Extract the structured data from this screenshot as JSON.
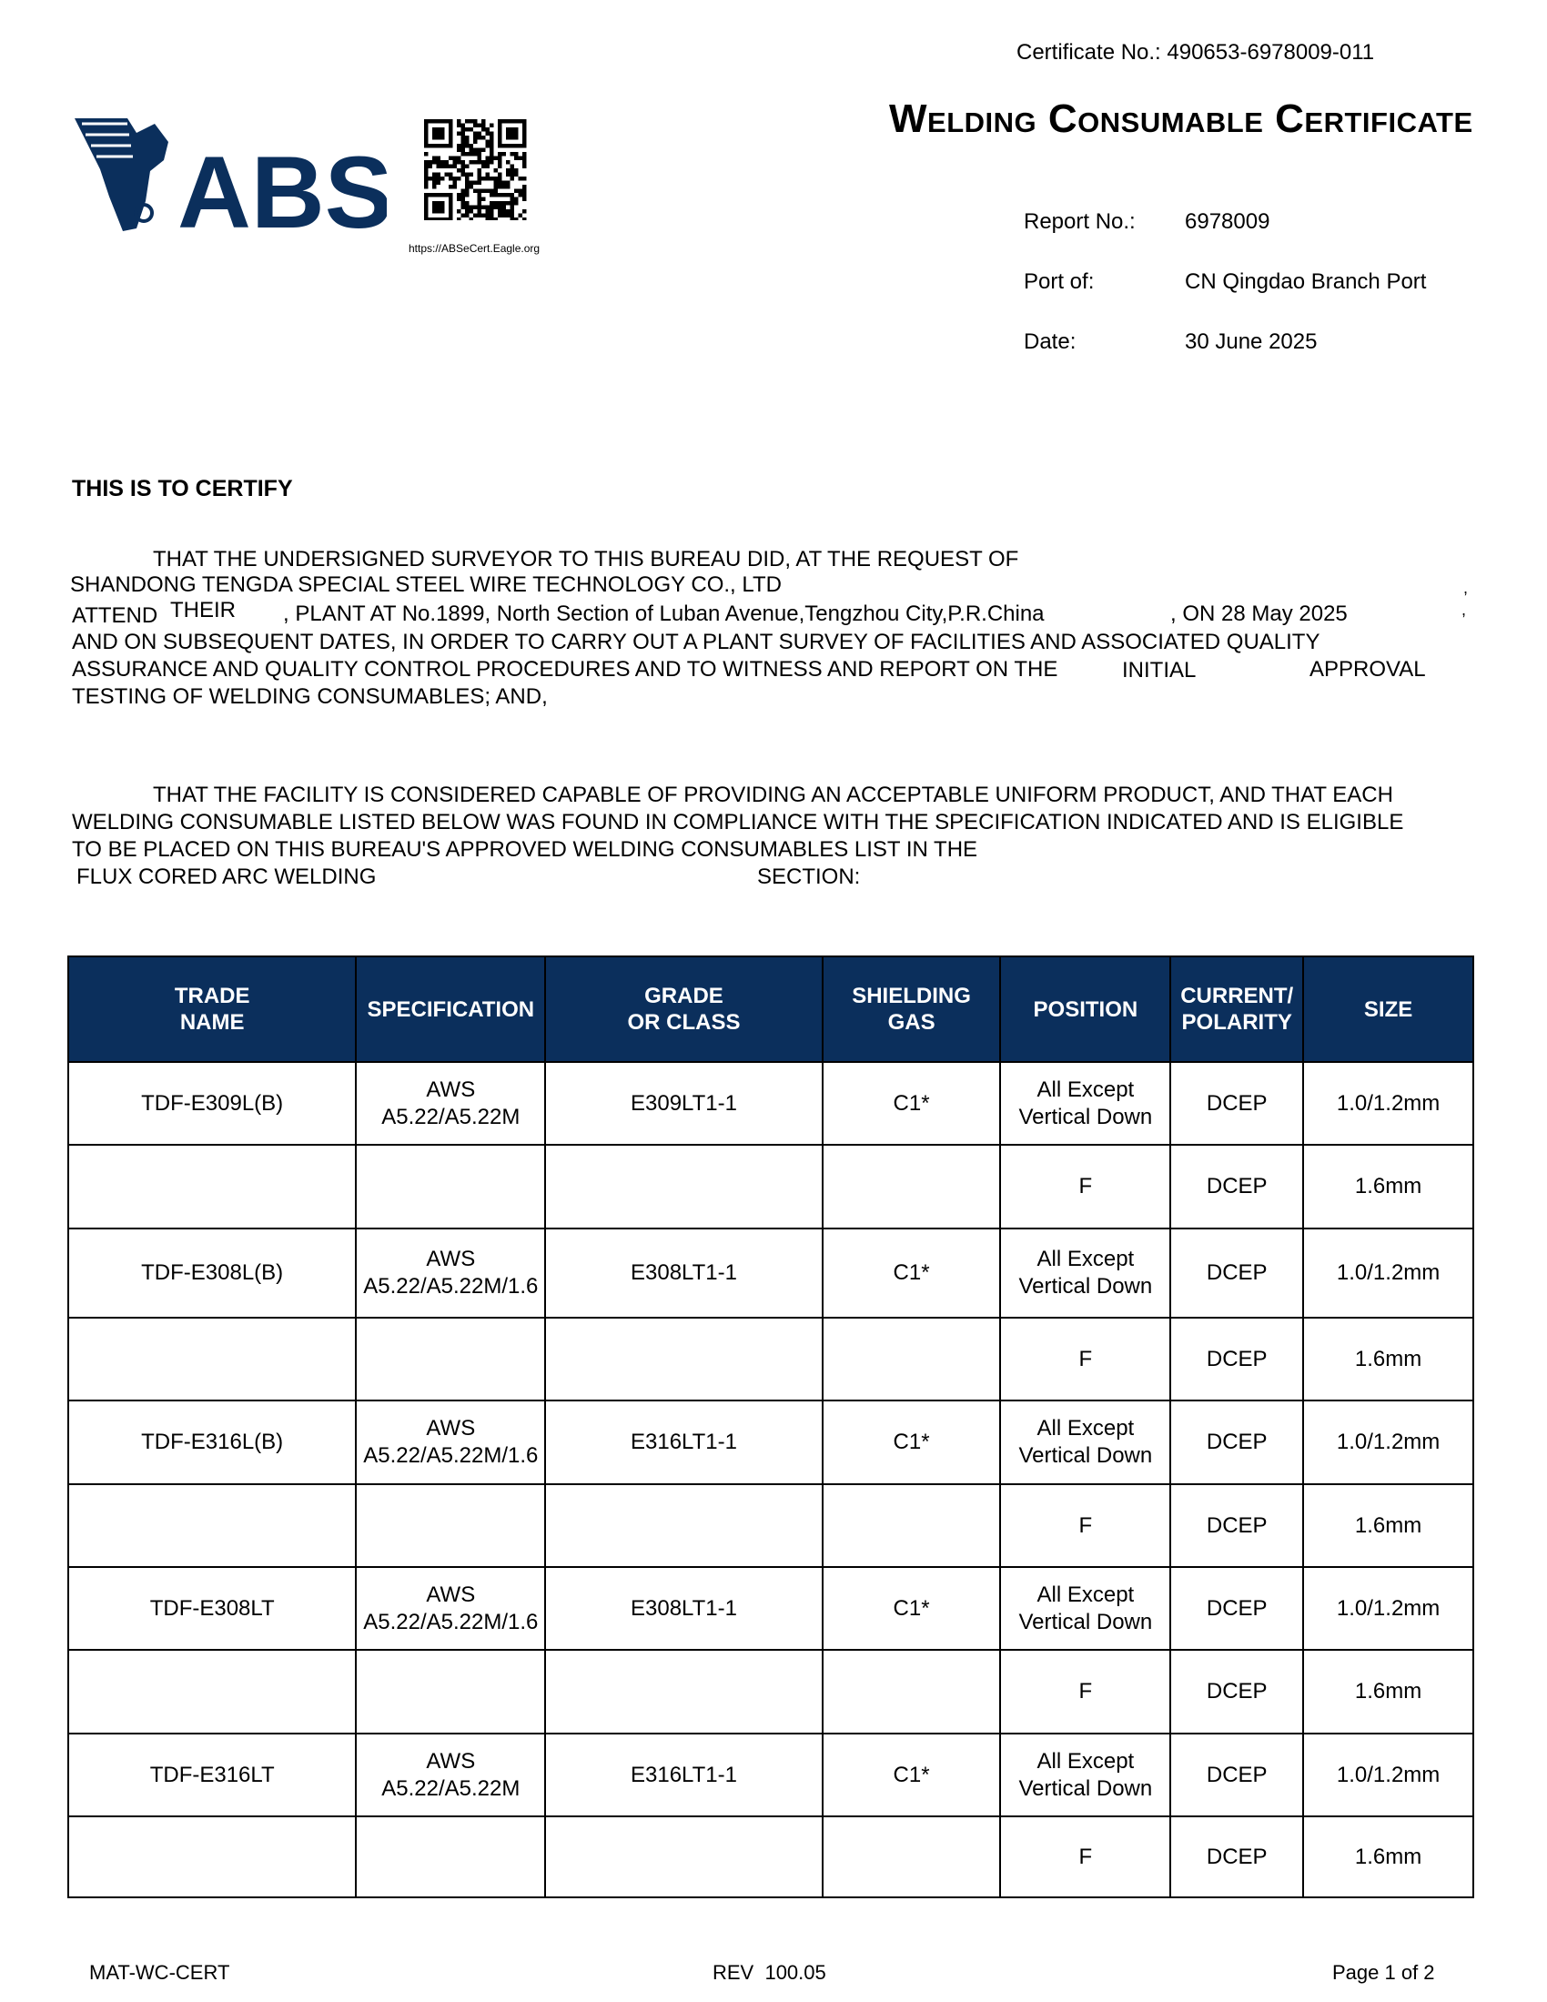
{
  "header": {
    "certificate_no_label": "Certificate No.:",
    "certificate_no": "490653-6978009-011",
    "title": "Welding Consumable Certificate",
    "logo_text": "ABS",
    "qr_url": "https://ABSeCert.Eagle.org",
    "report_no_label": "Report No.:",
    "report_no": "6978009",
    "port_label": "Port of:",
    "port": "CN Qingdao Branch Port",
    "date_label": "Date:",
    "date": "30 June 2025",
    "brand_color": "#0b2f5c"
  },
  "body": {
    "heading": "THIS IS TO CERTIFY",
    "p1_line1": "THAT THE UNDERSIGNED SURVEYOR TO THIS BUREAU DID, AT THE REQUEST OF",
    "company": "SHANDONG TENGDA SPECIAL STEEL WIRE TECHNOLOGY CO., LTD",
    "attend": "ATTEND",
    "their": "THEIR",
    "plant": ", PLANT AT No.1899, North Section of Luban Avenue,Tengzhou City,P.R.China",
    "on_date": ", ON 28 May 2025",
    "comma": ",",
    "p1_line4": "AND ON SUBSEQUENT DATES, IN ORDER TO CARRY OUT A PLANT SURVEY OF FACILITIES AND ASSOCIATED QUALITY",
    "p1_line5": "ASSURANCE AND QUALITY CONTROL PROCEDURES AND TO WITNESS AND REPORT ON THE",
    "approval_type": "INITIAL",
    "approval": "APPROVAL",
    "p1_line6": "TESTING OF WELDING CONSUMABLES; AND,",
    "p2_line1": "THAT THE FACILITY IS CONSIDERED CAPABLE OF PROVIDING AN ACCEPTABLE UNIFORM PRODUCT, AND THAT EACH",
    "p2_line2": "WELDING CONSUMABLE LISTED BELOW WAS FOUND IN COMPLIANCE WITH THE SPECIFICATION INDICATED AND IS ELIGIBLE",
    "p2_line3": "TO BE PLACED ON THIS BUREAU'S APPROVED WELDING CONSUMABLES LIST IN THE",
    "process": "FLUX CORED ARC WELDING",
    "section": "SECTION:"
  },
  "table": {
    "headers": [
      [
        "TRADE",
        "NAME"
      ],
      [
        "SPECIFICATION"
      ],
      [
        "GRADE",
        "OR CLASS"
      ],
      [
        "SHIELDING",
        "GAS"
      ],
      [
        "POSITION"
      ],
      [
        "CURRENT/",
        "POLARITY"
      ],
      [
        "SIZE"
      ]
    ],
    "rows": [
      [
        [
          "TDF-E309L(B)"
        ],
        [
          "AWS",
          "A5.22/A5.22M"
        ],
        [
          "E309LT1-1"
        ],
        [
          "C1*"
        ],
        [
          "All Except",
          "Vertical Down"
        ],
        [
          "DCEP"
        ],
        [
          "1.0/1.2mm"
        ]
      ],
      [
        [
          ""
        ],
        [
          ""
        ],
        [
          ""
        ],
        [
          ""
        ],
        [
          "F"
        ],
        [
          "DCEP"
        ],
        [
          "1.6mm"
        ]
      ],
      [
        [
          "TDF-E308L(B)"
        ],
        [
          "AWS",
          "A5.22/A5.22M/1.6"
        ],
        [
          "E308LT1-1"
        ],
        [
          "C1*"
        ],
        [
          "All Except",
          "Vertical Down"
        ],
        [
          "DCEP"
        ],
        [
          "1.0/1.2mm"
        ]
      ],
      [
        [
          ""
        ],
        [
          ""
        ],
        [
          ""
        ],
        [
          ""
        ],
        [
          "F"
        ],
        [
          "DCEP"
        ],
        [
          "1.6mm"
        ]
      ],
      [
        [
          "TDF-E316L(B)"
        ],
        [
          "AWS",
          "A5.22/A5.22M/1.6"
        ],
        [
          "E316LT1-1"
        ],
        [
          "C1*"
        ],
        [
          "All Except",
          "Vertical Down"
        ],
        [
          "DCEP"
        ],
        [
          "1.0/1.2mm"
        ]
      ],
      [
        [
          ""
        ],
        [
          ""
        ],
        [
          ""
        ],
        [
          ""
        ],
        [
          "F"
        ],
        [
          "DCEP"
        ],
        [
          "1.6mm"
        ]
      ],
      [
        [
          "TDF-E308LT"
        ],
        [
          "AWS",
          "A5.22/A5.22M/1.6"
        ],
        [
          "E308LT1-1"
        ],
        [
          "C1*"
        ],
        [
          "All Except",
          "Vertical Down"
        ],
        [
          "DCEP"
        ],
        [
          "1.0/1.2mm"
        ]
      ],
      [
        [
          ""
        ],
        [
          ""
        ],
        [
          ""
        ],
        [
          ""
        ],
        [
          "F"
        ],
        [
          "DCEP"
        ],
        [
          "1.6mm"
        ]
      ],
      [
        [
          "TDF-E316LT"
        ],
        [
          "AWS",
          "A5.22/A5.22M"
        ],
        [
          "E316LT1-1"
        ],
        [
          "C1*"
        ],
        [
          "All Except",
          "Vertical Down"
        ],
        [
          "DCEP"
        ],
        [
          "1.0/1.2mm"
        ]
      ],
      [
        [
          ""
        ],
        [
          ""
        ],
        [
          ""
        ],
        [
          ""
        ],
        [
          "F"
        ],
        [
          "DCEP"
        ],
        [
          "1.6mm"
        ]
      ]
    ]
  },
  "footer": {
    "form": "MAT-WC-CERT",
    "rev": "REV  100.05",
    "page": "Page 1 of 2"
  }
}
